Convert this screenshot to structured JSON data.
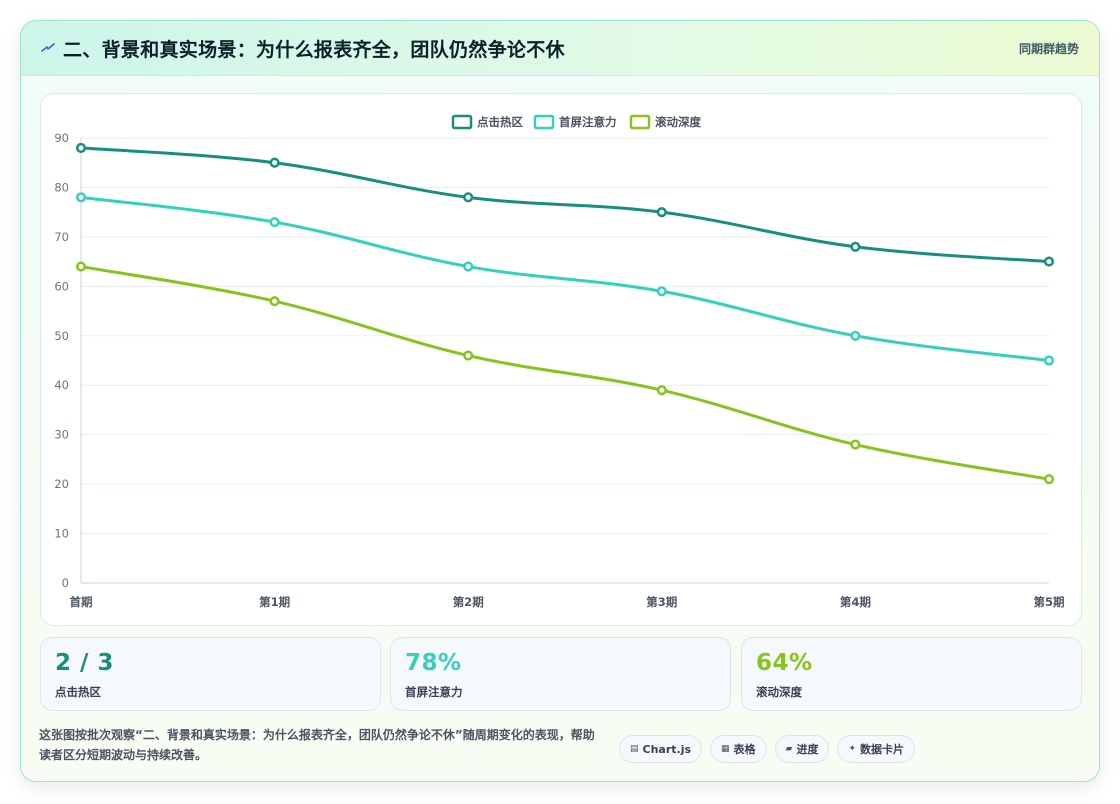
{
  "header": {
    "icon": "lightning-icon",
    "title": "二、背景和真实场景：为什么报表齐全，团队仍然争论不休",
    "badge": "同期群趋势"
  },
  "colors": {
    "series1": "#168f7e",
    "series2": "#33d0bd",
    "series3": "#84c41c"
  },
  "chart_data": {
    "type": "line",
    "categories": [
      "首期",
      "第1期",
      "第2期",
      "第3期",
      "第4期",
      "第5期"
    ],
    "series": [
      {
        "name": "点击热区",
        "values": [
          88,
          85,
          78,
          75,
          68,
          65
        ]
      },
      {
        "name": "首屏注意力",
        "values": [
          78,
          73,
          64,
          59,
          50,
          45
        ]
      },
      {
        "name": "滚动深度",
        "values": [
          64,
          57,
          46,
          39,
          28,
          21
        ]
      }
    ],
    "ylim": [
      0,
      90
    ],
    "yticks": [
      0,
      10,
      20,
      30,
      40,
      50,
      60,
      70,
      80,
      90
    ],
    "grid": true,
    "legend": "top-center"
  },
  "stats": [
    {
      "value": "2 / 3",
      "label": "点击热区"
    },
    {
      "value": "78%",
      "label": "首屏注意力"
    },
    {
      "value": "64%",
      "label": "滚动深度"
    }
  ],
  "footer": {
    "text": "这张图按批次观察“二、背景和真实场景：为什么报表齐全，团队仍然争论不休”随周期变化的表现，帮助读者区分短期波动与持续改善。"
  },
  "chips": [
    {
      "icon": "▤",
      "label": "Chart.js"
    },
    {
      "icon": "▦",
      "label": "表格"
    },
    {
      "icon": "▰",
      "label": "进度"
    },
    {
      "icon": "✦",
      "label": "数据卡片"
    }
  ]
}
